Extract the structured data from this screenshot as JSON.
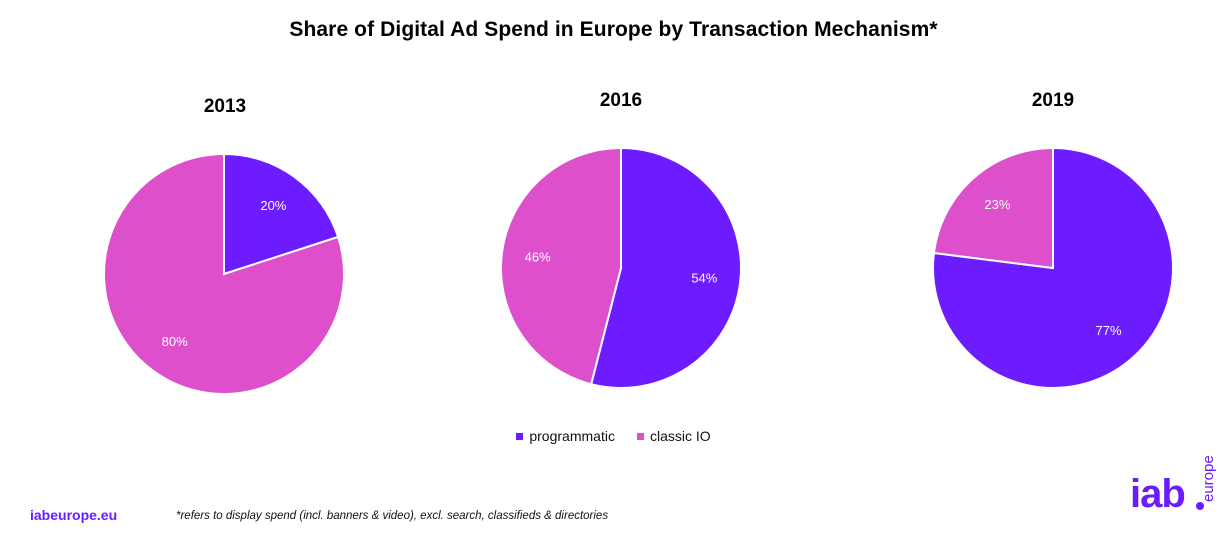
{
  "chart_data": {
    "type": "pie",
    "title": "Share of Digital Ad Spend in Europe by Transaction Mechanism*",
    "legend": {
      "entries": [
        "programmatic",
        "classic IO"
      ],
      "placement": "bottom-center"
    },
    "colors": {
      "programmatic": "#6c1cff",
      "classic IO": "#de4fcb"
    },
    "charts": [
      {
        "title": "2013",
        "slices": [
          {
            "name": "programmatic",
            "value": 20,
            "label": "20%"
          },
          {
            "name": "classic IO",
            "value": 80,
            "label": "80%"
          }
        ]
      },
      {
        "title": "2016",
        "slices": [
          {
            "name": "programmatic",
            "value": 54,
            "label": "54%"
          },
          {
            "name": "classic IO",
            "value": 46,
            "label": "46%"
          }
        ]
      },
      {
        "title": "2019",
        "slices": [
          {
            "name": "programmatic",
            "value": 77,
            "label": "77%"
          },
          {
            "name": "classic IO",
            "value": 23,
            "label": "23%"
          }
        ]
      }
    ]
  },
  "footer": {
    "site": "iabeurope.eu",
    "footnote": "*refers to display spend (incl. banners & video), excl. search, classifieds & directories"
  },
  "logo": {
    "main": "iab",
    "side": "europe"
  }
}
